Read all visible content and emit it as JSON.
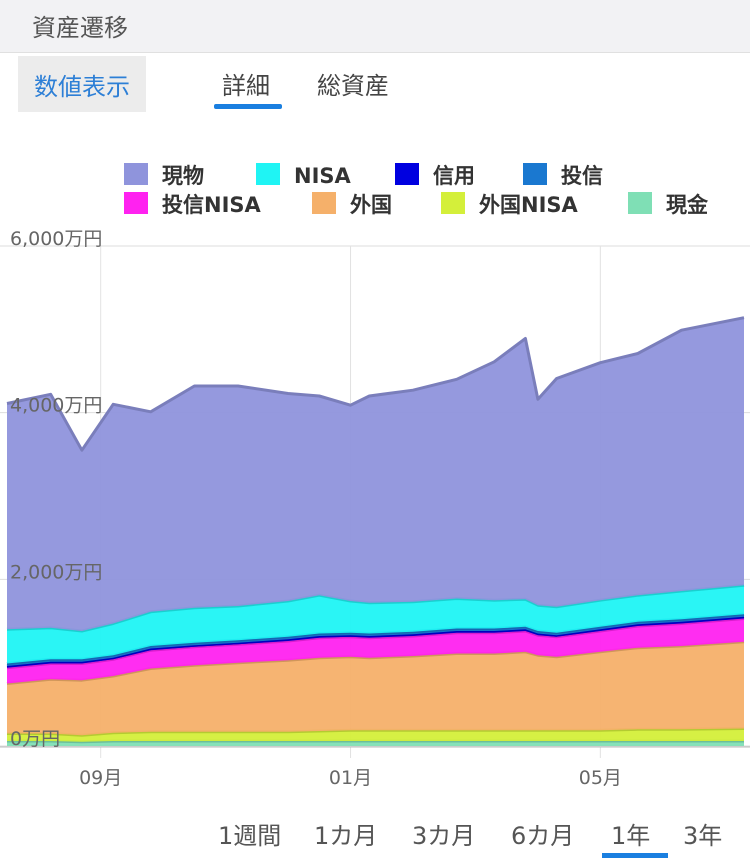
{
  "header": {
    "title": "資産遷移"
  },
  "tabs": {
    "numeric": "数値表示",
    "detail": "詳細",
    "total": "総資産",
    "active": "詳細"
  },
  "chart_data": {
    "type": "area",
    "stacked": true,
    "y_ticks": [
      "0万円",
      "2,000万円",
      "4,000万円",
      "6,000万円"
    ],
    "ylim": [
      0,
      6000
    ],
    "y_unit": "万円",
    "x_ticks": [
      {
        "label": "09月",
        "month_index": 1
      },
      {
        "label": "01月",
        "month_index": 5
      },
      {
        "label": "05月",
        "month_index": 9
      }
    ],
    "x_range_months": [
      -0.5,
      11.3
    ],
    "grid": "horizontal",
    "legend_position": "top",
    "x": [
      -0.5,
      0.2,
      0.7,
      1.2,
      1.8,
      2.5,
      3.2,
      4.0,
      4.5,
      5.0,
      5.3,
      6.0,
      6.7,
      7.3,
      7.8,
      8.0,
      8.3,
      9.0,
      9.6,
      10.3,
      11.3
    ],
    "series": [
      {
        "name": "現金",
        "color": "#7fdfb5",
        "values": [
          60,
          60,
          50,
          60,
          60,
          60,
          60,
          60,
          60,
          60,
          60,
          60,
          60,
          60,
          60,
          60,
          60,
          60,
          60,
          60,
          60
        ]
      },
      {
        "name": "外国NISA",
        "color": "#d4ef3a",
        "values": [
          90,
          90,
          80,
          100,
          110,
          110,
          110,
          110,
          120,
          130,
          130,
          130,
          130,
          130,
          130,
          130,
          130,
          130,
          140,
          140,
          150
        ]
      },
      {
        "name": "外国",
        "color": "#f5b06a",
        "values": [
          600,
          650,
          660,
          680,
          760,
          800,
          830,
          860,
          880,
          880,
          870,
          890,
          920,
          920,
          940,
          900,
          880,
          940,
          980,
          1000,
          1040
        ]
      },
      {
        "name": "投信NISA",
        "color": "#ff22f0",
        "values": [
          190,
          190,
          200,
          200,
          220,
          220,
          220,
          230,
          240,
          240,
          240,
          240,
          250,
          250,
          250,
          240,
          240,
          250,
          260,
          270,
          280
        ]
      },
      {
        "name": "信用",
        "color": "#0000e0",
        "values": [
          20,
          20,
          20,
          20,
          20,
          20,
          20,
          20,
          20,
          20,
          20,
          20,
          20,
          20,
          20,
          20,
          20,
          20,
          20,
          20,
          20
        ]
      },
      {
        "name": "投信",
        "color": "#1a78d0",
        "values": [
          30,
          30,
          30,
          30,
          30,
          30,
          30,
          30,
          30,
          30,
          30,
          30,
          30,
          30,
          30,
          30,
          30,
          30,
          30,
          30,
          30
        ]
      },
      {
        "name": "NISA",
        "color": "#1ff4f4",
        "values": [
          410,
          380,
          340,
          380,
          410,
          420,
          410,
          430,
          460,
          380,
          370,
          360,
          360,
          340,
          330,
          310,
          310,
          320,
          320,
          340,
          350
        ]
      },
      {
        "name": "現物",
        "color": "#8f94dc",
        "values": [
          2710,
          2800,
          2170,
          2630,
          2400,
          2660,
          2640,
          2490,
          2390,
          2350,
          2480,
          2540,
          2630,
          2860,
          3130,
          2470,
          2740,
          2850,
          2900,
          3130,
          3210
        ]
      }
    ],
    "legend_order": [
      "現物",
      "NISA",
      "信用",
      "投信",
      "投信NISA",
      "外国",
      "外国NISA",
      "現金"
    ]
  },
  "ranges": [
    "1週間",
    "1カ月",
    "3カ月",
    "6カ月",
    "1年",
    "3年"
  ],
  "active_range": "1年",
  "colors": {
    "accent": "#1a7fe0",
    "numeric_tab_text": "#2d7fd6"
  }
}
